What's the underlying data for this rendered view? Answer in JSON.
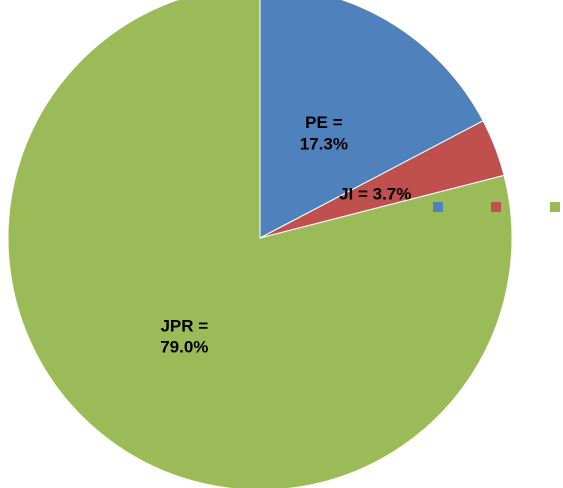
{
  "chart_data": {
    "type": "pie",
    "categories": [
      "PE",
      "JI",
      "JPR"
    ],
    "values": [
      17.3,
      3.7,
      79.0
    ],
    "value_labels": [
      "PE =\n17.3%",
      "JI = 3.7%",
      "JPR =\n79.0%"
    ],
    "colors": [
      "#4f81bd",
      "#c0504d",
      "#9bbb59"
    ],
    "legend": "right"
  }
}
